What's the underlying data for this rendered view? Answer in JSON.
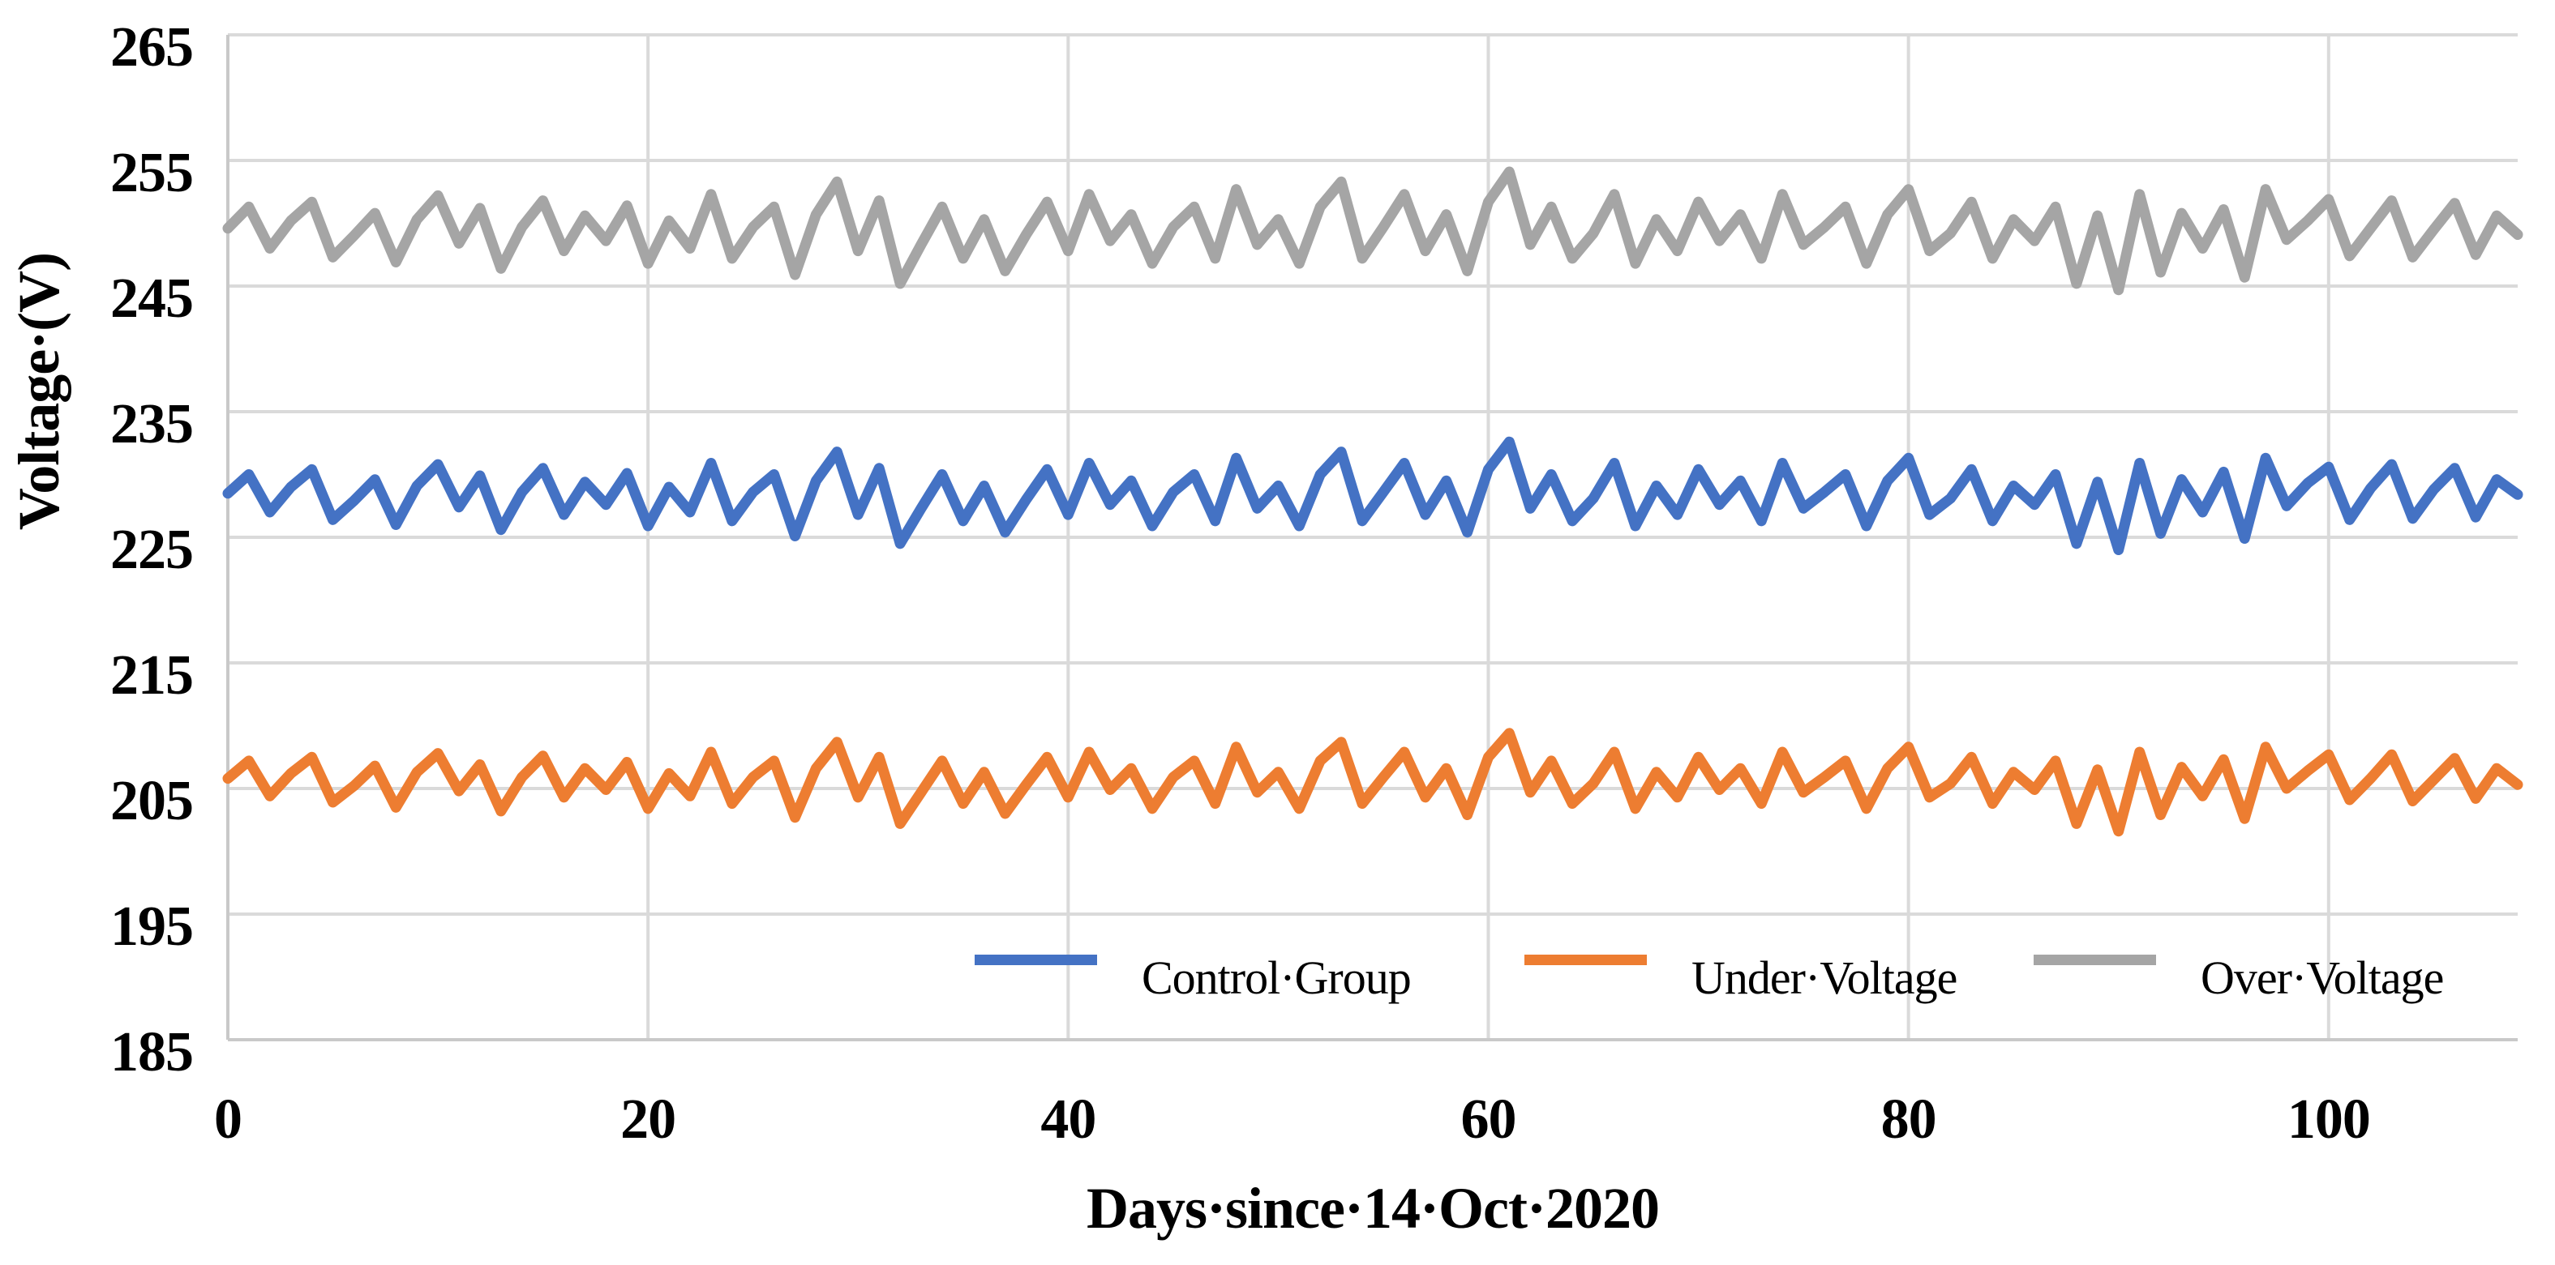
{
  "chart_data": {
    "type": "line",
    "title": "",
    "xlabel": "Days·since·14·Oct·2020",
    "ylabel": "Voltage·(V)",
    "xlim": [
      0,
      109
    ],
    "ylim": [
      185,
      265
    ],
    "ytick_step": 10,
    "yticks": [
      "265",
      "255",
      "245",
      "235",
      "225",
      "215",
      "205",
      "195",
      "185"
    ],
    "xticks": [
      "0",
      "20",
      "40",
      "60",
      "80",
      "100"
    ],
    "xtick_values": [
      0,
      20,
      40,
      60,
      80,
      100
    ],
    "grid": {
      "horizontal": true,
      "vertical": true
    },
    "legend_position": "inside-bottom",
    "series": [
      {
        "name": "Control·Group",
        "color": "#4472C4",
        "values": [
          228.5,
          230.0,
          227.0,
          229.0,
          230.4,
          226.4,
          227.9,
          229.6,
          226.0,
          229.1,
          230.8,
          227.4,
          229.9,
          225.6,
          228.6,
          230.5,
          226.8,
          229.4,
          227.6,
          230.1,
          225.9,
          229.0,
          227.0,
          230.9,
          226.3,
          228.6,
          230.0,
          225.1,
          229.5,
          231.8,
          226.8,
          230.5,
          224.5,
          227.3,
          230.0,
          226.3,
          229.1,
          225.4,
          228.0,
          230.4,
          226.8,
          230.9,
          227.6,
          229.5,
          225.9,
          228.6,
          230.0,
          226.3,
          231.3,
          227.3,
          229.1,
          225.9,
          230.0,
          231.8,
          226.3,
          228.6,
          230.9,
          226.8,
          229.5,
          225.4,
          230.4,
          232.6,
          227.3,
          230.0,
          226.3,
          228.1,
          230.9,
          225.9,
          229.1,
          226.8,
          230.4,
          227.6,
          229.5,
          226.3,
          230.9,
          227.3,
          228.6,
          230.0,
          225.9,
          229.5,
          231.3,
          226.8,
          228.1,
          230.4,
          226.3,
          229.1,
          227.6,
          230.0,
          224.5,
          229.4,
          224.0,
          230.9,
          225.3,
          229.6,
          227.0,
          230.2,
          224.9,
          231.3,
          227.5,
          229.3,
          230.6,
          226.4,
          228.9,
          230.8,
          226.5,
          228.8,
          230.5,
          226.6,
          229.6,
          228.4
        ]
      },
      {
        "name": "Under·Voltage",
        "color": "#ED7D31",
        "values": [
          205.8,
          207.2,
          204.4,
          206.2,
          207.5,
          203.9,
          205.2,
          206.8,
          203.5,
          206.3,
          207.8,
          204.8,
          206.9,
          203.2,
          205.9,
          207.6,
          204.3,
          206.6,
          204.9,
          207.1,
          203.4,
          206.2,
          204.4,
          207.9,
          203.8,
          205.9,
          207.2,
          202.7,
          206.6,
          208.7,
          204.3,
          207.5,
          202.2,
          204.7,
          207.2,
          203.8,
          206.3,
          203.0,
          205.3,
          207.5,
          204.3,
          207.9,
          204.9,
          206.6,
          203.4,
          205.9,
          207.2,
          203.8,
          208.3,
          204.7,
          206.3,
          203.4,
          207.2,
          208.7,
          203.8,
          205.9,
          207.9,
          204.3,
          206.6,
          202.9,
          207.5,
          209.4,
          204.7,
          207.2,
          203.8,
          205.4,
          207.9,
          203.4,
          206.3,
          204.3,
          207.5,
          204.9,
          206.6,
          203.8,
          207.9,
          204.7,
          205.9,
          207.2,
          203.4,
          206.6,
          208.3,
          204.3,
          205.4,
          207.5,
          203.8,
          206.3,
          204.9,
          207.2,
          202.2,
          206.5,
          201.6,
          207.9,
          202.9,
          206.7,
          204.4,
          207.3,
          202.6,
          208.3,
          205.0,
          206.4,
          207.7,
          204.1,
          205.8,
          207.7,
          204.0,
          205.7,
          207.4,
          204.2,
          206.6,
          205.3
        ]
      },
      {
        "name": "Over·Voltage",
        "color": "#A5A5A5",
        "values": [
          249.6,
          251.3,
          248.0,
          250.2,
          251.7,
          247.3,
          249.0,
          250.8,
          246.9,
          250.3,
          252.2,
          248.4,
          251.2,
          246.4,
          249.7,
          251.8,
          247.8,
          250.6,
          248.6,
          251.4,
          246.8,
          250.2,
          248.0,
          252.3,
          247.2,
          249.7,
          251.3,
          245.9,
          250.7,
          253.3,
          247.8,
          251.8,
          245.2,
          248.3,
          251.3,
          247.2,
          250.3,
          246.2,
          249.1,
          251.7,
          247.8,
          252.3,
          248.6,
          250.7,
          246.8,
          249.7,
          251.3,
          247.2,
          252.7,
          248.3,
          250.3,
          246.8,
          251.3,
          253.3,
          247.2,
          249.7,
          252.3,
          247.8,
          250.7,
          246.2,
          251.7,
          254.1,
          248.3,
          251.3,
          247.2,
          249.2,
          252.3,
          246.8,
          250.3,
          247.8,
          251.7,
          248.6,
          250.7,
          247.2,
          252.3,
          248.3,
          249.7,
          251.3,
          246.8,
          250.7,
          252.7,
          247.8,
          249.2,
          251.7,
          247.2,
          250.3,
          248.6,
          251.3,
          245.2,
          250.6,
          244.7,
          252.3,
          246.1,
          250.8,
          248.0,
          251.1,
          245.7,
          252.7,
          248.7,
          250.2,
          251.9,
          247.4,
          249.6,
          251.8,
          247.3,
          249.5,
          251.6,
          247.5,
          250.6,
          249.1
        ]
      }
    ]
  },
  "colors": {
    "background": "#FFFFFF",
    "gridline": "#DADADA",
    "axis": "#C9C9C9",
    "text": "#000000"
  }
}
